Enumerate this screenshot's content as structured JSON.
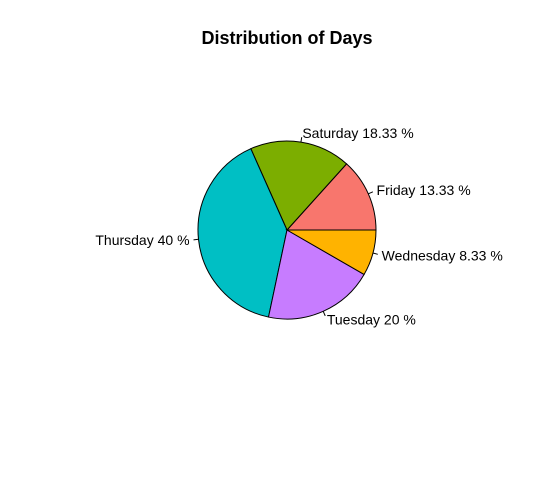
{
  "chart_data": {
    "type": "pie",
    "title": "Distribution of Days",
    "slices": [
      {
        "label": "Friday",
        "value": 13.33,
        "display": "Friday 13.33 %",
        "color": "#F8766D"
      },
      {
        "label": "Saturday",
        "value": 18.33,
        "display": "Saturday 18.33 %",
        "color": "#7CAE00"
      },
      {
        "label": "Thursday",
        "value": 40,
        "display": "Thursday 40 %",
        "color": "#00BFC4"
      },
      {
        "label": "Tuesday",
        "value": 20,
        "display": "Tuesday 20 %",
        "color": "#C77CFF"
      },
      {
        "label": "Wednesday",
        "value": 8.33,
        "display": "Wednesday 8.33 %",
        "color": "#FFB300"
      }
    ],
    "start_angle_deg": 0,
    "direction": "counterclockwise",
    "legend": "none"
  }
}
